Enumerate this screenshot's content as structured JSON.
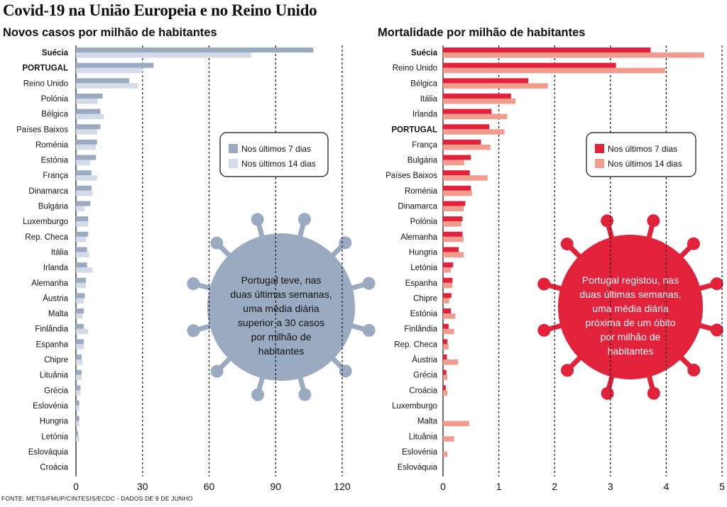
{
  "title": "Covid-19 na União Europeia e no Reino Unido",
  "source": "FONTE: METIS/FMUP/CINTESIS/ECDC - DADOS DE 9 DE JUNHO",
  "colors": {
    "left_7": "#9aabc1",
    "left_14": "#d3dbe8",
    "right_7": "#e2223a",
    "right_14": "#f29c8d",
    "left_virus": "#9aabc1",
    "right_virus": "#e2223a"
  },
  "chart_data": [
    {
      "type": "bar",
      "title": "Novos casos por milhão de habitantes",
      "categories": [
        "Suécia",
        "PORTUGAL",
        "Reino Unido",
        "Polónia",
        "Bélgica",
        "Países Baixos",
        "Roménia",
        "Estónia",
        "França",
        "Dinamarca",
        "Bulgária",
        "Luxemburgo",
        "Rep. Checa",
        "Itália",
        "Irlanda",
        "Alemanha",
        "Áustria",
        "Malta",
        "Finlândia",
        "Espanha",
        "Chipre",
        "Lituânia",
        "Grécia",
        "Eslovénia",
        "Hungria",
        "Letónia",
        "Eslováquia",
        "Croácia"
      ],
      "bold_categories": [
        "Suécia",
        "PORTUGAL"
      ],
      "series": [
        {
          "name": "Nos últimos 7 dias",
          "values": [
            107,
            35,
            24,
            12,
            11,
            11,
            9.5,
            9,
            7,
            7,
            6.5,
            5.5,
            5.5,
            5,
            5,
            4.5,
            4,
            3.5,
            3.5,
            3.5,
            2.5,
            2.5,
            2,
            1.5,
            1.5,
            1,
            0,
            0
          ]
        },
        {
          "name": "Nos últimos 14 dias",
          "values": [
            79,
            30,
            28,
            10,
            12.5,
            9.5,
            9,
            6.5,
            9.5,
            7.5,
            4,
            5.5,
            4.5,
            6,
            7.5,
            4.5,
            3.5,
            3,
            5.5,
            3.5,
            3,
            2.5,
            2,
            1.5,
            1.5,
            1.5,
            0,
            0
          ]
        }
      ],
      "xlim": [
        0,
        120
      ],
      "xticks": [
        0,
        30,
        60,
        90,
        120
      ],
      "annotation": "Portugal teve, nas duas últimas semanas, uma média diária superior a 30 casos por milhão de habitantes",
      "annotation_lines": [
        "Portugal teve, nas",
        "duas últimas semanas,",
        "uma média diária",
        "superior a 30 casos",
        "por milhão de",
        "habitantes"
      ]
    },
    {
      "type": "bar",
      "title": "Mortalidade por milhão de habitantes",
      "categories": [
        "Suécia",
        "Reino Unido",
        "Bélgica",
        "Itália",
        "Irlanda",
        "PORTUGAL",
        "França",
        "Bulgária",
        "Países Baixos",
        "Roménia",
        "Dinamarca",
        "Polónia",
        "Alemanha",
        "Hungria",
        "Letónia",
        "Espanha",
        "Chipre",
        "Estónia",
        "Finlândia",
        "Rep. Checa",
        "Áustria",
        "Grécia",
        "Croácia",
        "Luxemburgo",
        "Malta",
        "Lituânia",
        "Eslovénia",
        "Eslováquia"
      ],
      "bold_categories": [
        "Suécia",
        "PORTUGAL"
      ],
      "series": [
        {
          "name": "Nos últimos 7 dias",
          "values": [
            3.72,
            3.1,
            1.53,
            1.22,
            0.87,
            0.83,
            0.68,
            0.5,
            0.48,
            0.5,
            0.4,
            0.35,
            0.35,
            0.28,
            0.18,
            0.17,
            0.15,
            0.14,
            0.1,
            0.08,
            0.07,
            0.06,
            0.05,
            0,
            0,
            0,
            0,
            0
          ]
        },
        {
          "name": "Nos últimos 14 dias",
          "values": [
            4.68,
            3.98,
            1.88,
            1.3,
            1.15,
            1.1,
            0.85,
            0.38,
            0.8,
            0.52,
            0.37,
            0.33,
            0.37,
            0.37,
            0.14,
            0.17,
            0.11,
            0.22,
            0.2,
            0.1,
            0.27,
            0.08,
            0.08,
            0,
            0.47,
            0.2,
            0.08,
            0
          ]
        }
      ],
      "xlim": [
        0,
        5
      ],
      "xticks": [
        0,
        1,
        2,
        3,
        4,
        5
      ],
      "annotation": "Portugal registou, nas duas últimas semanas, uma média diária próxima de um óbito por milhão de habitantes",
      "annotation_lines": [
        "Portugal registou, nas",
        "duas últimas semanas,",
        "uma média diária",
        "próxima de um óbito",
        "por milhão de",
        "habitantes"
      ]
    }
  ]
}
